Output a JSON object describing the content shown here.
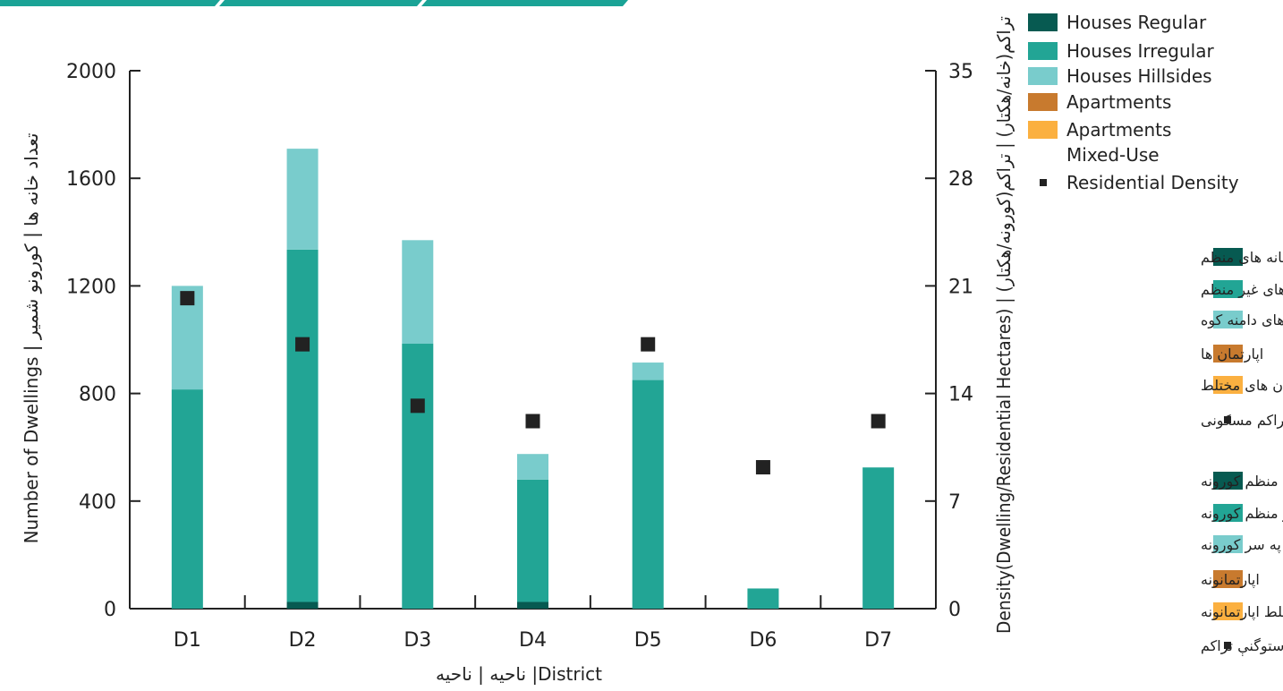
{
  "colors": {
    "houses_regular": "#075a51",
    "houses_irregular": "#22a595",
    "houses_hillsides": "#79cccc",
    "apartments": "#c87a2e",
    "apartments_mixed_use": "#fbb040",
    "density_marker": "#222222",
    "header_bar": "#1aa396"
  },
  "chart_data": {
    "type": "bar",
    "stacked": true,
    "categories": [
      "D1",
      "D2",
      "D3",
      "D4",
      "D5",
      "D6",
      "D7"
    ],
    "series": [
      {
        "name": "Houses Regular",
        "color_key": "houses_regular",
        "values": [
          0,
          25,
          0,
          25,
          0,
          0,
          0
        ]
      },
      {
        "name": "Houses Irregular",
        "color_key": "houses_irregular",
        "values": [
          815,
          1310,
          985,
          455,
          850,
          75,
          525
        ]
      },
      {
        "name": "Houses Hillsides",
        "color_key": "houses_hillsides",
        "values": [
          385,
          375,
          385,
          95,
          65,
          0,
          0
        ]
      },
      {
        "name": "Apartments",
        "color_key": "apartments",
        "values": [
          0,
          0,
          0,
          0,
          0,
          0,
          0
        ]
      },
      {
        "name": "Apartments Mixed-Use",
        "color_key": "apartments_mixed_use",
        "values": [
          0,
          0,
          0,
          0,
          0,
          0,
          0
        ]
      }
    ],
    "density": {
      "name": "Residential Density",
      "values": [
        20.2,
        17.2,
        13.2,
        12.2,
        17.2,
        9.2,
        12.2
      ]
    },
    "xlabel": "ناحیه | ناحیه |District",
    "ylabel": "Number of Dwellings | تعداد خانه ها | کورونو شمیر",
    "y2label": "Density(Dwelling/Residential Hectares) | تراکم(خانه/هکتار) | تراکم(کورونه/هکتار)",
    "ylim": [
      0,
      2000
    ],
    "yticks": [
      0,
      400,
      800,
      1200,
      1600,
      2000
    ],
    "y2lim": [
      0,
      35
    ],
    "y2ticks": [
      0,
      7,
      14,
      21,
      28,
      35
    ],
    "grid": false,
    "legend_position": "right"
  },
  "legend": {
    "english": [
      "Houses Regular",
      "Houses Irregular",
      "Houses Hillsides",
      "Apartments",
      "Apartments",
      "Mixed-Use",
      "Residential Density"
    ],
    "dari": [
      "خانه های منظم",
      "خانه های غیر منظم",
      "خانه های دامنه کوه",
      "اپارتمان ها",
      "اپارتمان های مختلط",
      "تراکم مسکونی"
    ],
    "pashto": [
      "منظم کورونه",
      "غیر منظم کورونه",
      "د غرونو په سر کورونه",
      "اپارتمانونه",
      "مختلط اپارتمانونه",
      "استوگنې تراکم"
    ]
  }
}
